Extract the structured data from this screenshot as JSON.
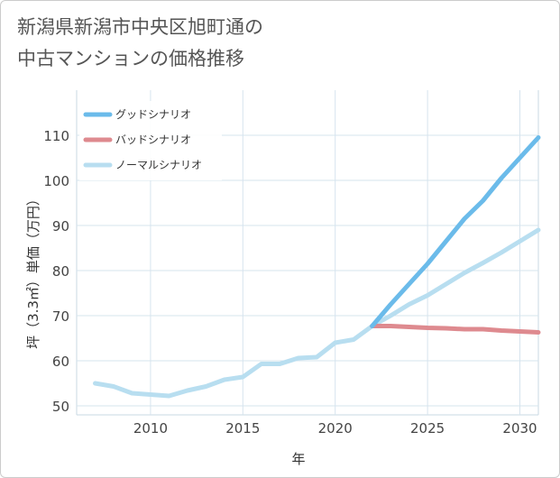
{
  "title": "新潟県新潟市中央区旭町通の\n中古マンションの価格推移",
  "chart_data": {
    "type": "line",
    "xlabel": "年",
    "ylabel": "坪（3.3㎡）単価（万円）",
    "xlim": [
      2006,
      2031
    ],
    "ylim": [
      48,
      120
    ],
    "xticks": [
      2010,
      2015,
      2020,
      2025,
      2030
    ],
    "yticks": [
      50,
      60,
      70,
      80,
      90,
      100,
      110
    ],
    "grid": true,
    "legend_position": "top-left",
    "series": [
      {
        "name": "グッドシナリオ",
        "color": "#6bbbea",
        "x": [
          2022,
          2023,
          2024,
          2025,
          2026,
          2027,
          2028,
          2029,
          2030,
          2031
        ],
        "values": [
          67.7,
          72.5,
          77.0,
          81.5,
          86.5,
          91.5,
          95.5,
          100.5,
          105.0,
          109.5
        ]
      },
      {
        "name": "バッドシナリオ",
        "color": "#de8a8f",
        "x": [
          2022,
          2023,
          2024,
          2025,
          2026,
          2027,
          2028,
          2029,
          2030,
          2031
        ],
        "values": [
          67.7,
          67.7,
          67.5,
          67.3,
          67.2,
          67.0,
          67.0,
          66.7,
          66.5,
          66.3
        ]
      },
      {
        "name": "ノーマルシナリオ",
        "color": "#b8def0",
        "x": [
          2007,
          2008,
          2009,
          2010,
          2011,
          2012,
          2013,
          2014,
          2015,
          2016,
          2017,
          2018,
          2019,
          2020,
          2021,
          2022,
          2023,
          2024,
          2025,
          2026,
          2027,
          2028,
          2029,
          2030,
          2031
        ],
        "values": [
          55.0,
          54.3,
          52.8,
          52.5,
          52.2,
          53.4,
          54.3,
          55.8,
          56.4,
          59.3,
          59.3,
          60.6,
          60.8,
          64.0,
          64.7,
          67.7,
          70.0,
          72.5,
          74.5,
          77.0,
          79.5,
          81.7,
          84.0,
          86.5,
          89.0
        ]
      }
    ]
  }
}
